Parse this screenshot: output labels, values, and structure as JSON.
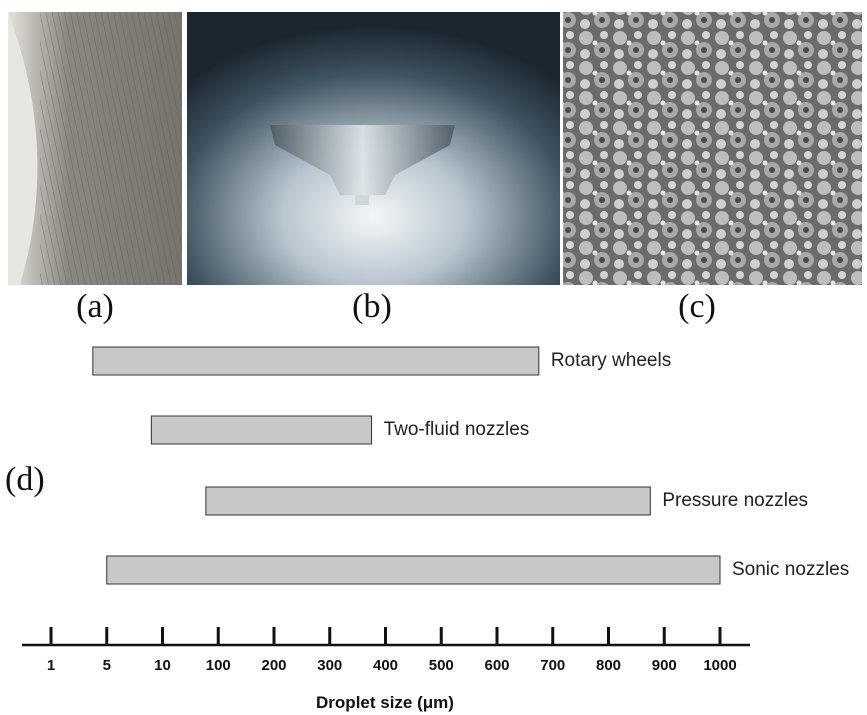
{
  "panels": [
    {
      "label": "(a)"
    },
    {
      "label": "(b)"
    },
    {
      "label": "(c)"
    }
  ],
  "chart_data": {
    "type": "range_bar",
    "panel_label": "(d)",
    "categories": [
      "Rotary wheels",
      "Two-fluid nozzles",
      "Pressure nozzles",
      "Sonic nozzles"
    ],
    "low": [
      4,
      9,
      80,
      5
    ],
    "high": [
      675,
      375,
      875,
      1000
    ],
    "color": "#c8c8c8",
    "xscale": "piecewise",
    "xlim": [
      1,
      1000
    ],
    "xticks": [
      1,
      5,
      10,
      100,
      200,
      300,
      400,
      500,
      600,
      700,
      800,
      900,
      1000
    ],
    "xlabel": "Droplet size (μm)"
  }
}
